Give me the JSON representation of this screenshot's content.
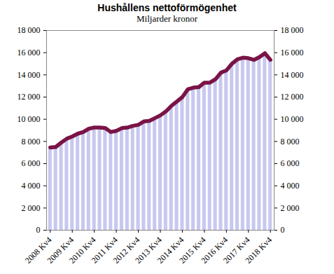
{
  "chart_data": {
    "type": "bar",
    "title": "Hushållens nettoförmögenhet",
    "subtitle": "Miljarder kronor",
    "categories": [
      "2008 Kv4",
      null,
      null,
      null,
      "2009 Kv4",
      null,
      null,
      null,
      "2010 Kv4",
      null,
      null,
      null,
      "2011 Kv4",
      null,
      null,
      null,
      "2012 Kv4",
      null,
      null,
      null,
      "2013 Kv4",
      null,
      null,
      null,
      "2014 Kv4",
      null,
      null,
      null,
      "2015 Kv4",
      null,
      null,
      null,
      "2016 Kv4",
      null,
      null,
      null,
      "2017 Kv4",
      null,
      null,
      null,
      "2018 Kv4"
    ],
    "series": [
      {
        "type": "bar",
        "color": "#c8c8f0",
        "values": [
          7450,
          7500,
          7900,
          8250,
          8450,
          8700,
          8850,
          9150,
          9250,
          9250,
          9200,
          8850,
          8950,
          9200,
          9250,
          9400,
          9500,
          9800,
          9850,
          10100,
          10350,
          10700,
          11200,
          11600,
          12000,
          12700,
          12850,
          12900,
          13300,
          13300,
          13600,
          14200,
          14400,
          15000,
          15400,
          15550,
          15500,
          15350,
          15600,
          15950,
          15350
        ]
      },
      {
        "type": "line",
        "color": "#7a1446",
        "values": [
          7450,
          7500,
          7900,
          8250,
          8450,
          8700,
          8850,
          9150,
          9250,
          9250,
          9200,
          8850,
          8950,
          9200,
          9250,
          9400,
          9500,
          9800,
          9850,
          10100,
          10350,
          10700,
          11200,
          11600,
          12000,
          12700,
          12850,
          12900,
          13300,
          13300,
          13600,
          14200,
          14400,
          15000,
          15400,
          15550,
          15500,
          15350,
          15600,
          15950,
          15350
        ]
      }
    ],
    "ylim": [
      0,
      18000
    ],
    "yticks": [
      0,
      {
        "value": 2000,
        "label": "2 000"
      },
      {
        "value": 4000,
        "label": "4 000"
      },
      {
        "value": 6000,
        "label": "6 000"
      },
      {
        "value": 8000,
        "label": "8 000"
      },
      {
        "value": 10000,
        "label": "10 000"
      },
      {
        "value": 12000,
        "label": "12 000"
      },
      {
        "value": 14000,
        "label": "14 000"
      },
      {
        "value": 16000,
        "label": "16 000"
      },
      {
        "value": 18000,
        "label": "18 000"
      }
    ],
    "y2lim": [
      0,
      18000
    ],
    "y2ticks": [
      0,
      {
        "value": 2000,
        "label": "2 000"
      },
      {
        "value": 4000,
        "label": "4 000"
      },
      {
        "value": 6000,
        "label": "6 000"
      },
      {
        "value": 8000,
        "label": "8 000"
      },
      {
        "value": 10000,
        "label": "10 000"
      },
      {
        "value": 12000,
        "label": "12 000"
      },
      {
        "value": 14000,
        "label": "14 000"
      },
      {
        "value": 16000,
        "label": "16 000"
      },
      {
        "value": 18000,
        "label": "18 000"
      }
    ],
    "grid": false
  }
}
